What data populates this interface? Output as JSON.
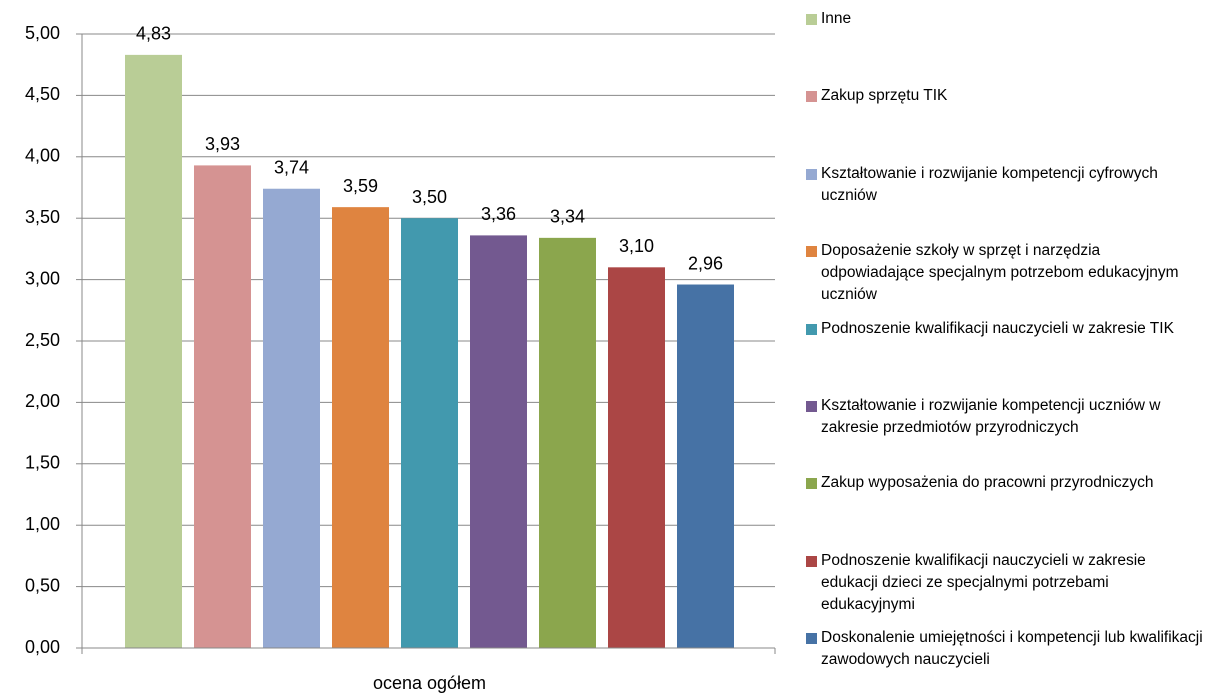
{
  "chart_data": {
    "type": "bar",
    "categories": [
      "ocena ogółem"
    ],
    "series": [
      {
        "name": "Inne",
        "color": "#b9cd96",
        "values": [
          4.83
        ],
        "value_labels": [
          "4,83"
        ]
      },
      {
        "name": "Zakup sprzętu TIK",
        "color": "#d59392",
        "values": [
          3.93
        ],
        "value_labels": [
          "3,93"
        ]
      },
      {
        "name": "Kształtowanie i rozwijanie kompetencji cyfrowych uczniów",
        "color": "#95a9d2",
        "values": [
          3.74
        ],
        "value_labels": [
          "3,74"
        ]
      },
      {
        "name": "Doposażenie szkoły w sprzęt i narzędzia odpowiadające specjalnym potrzebom edukacyjnym uczniów",
        "color": "#df8440",
        "values": [
          3.59
        ],
        "value_labels": [
          "3,59"
        ]
      },
      {
        "name": "Podnoszenie kwalifikacji nauczycieli w zakresie TIK",
        "color": "#4299ae",
        "values": [
          3.5
        ],
        "value_labels": [
          "3,50"
        ]
      },
      {
        "name": "Kształtowanie i rozwijanie kompetencji uczniów w zakresie przedmiotów przyrodniczych",
        "color": "#735990",
        "values": [
          3.36
        ],
        "value_labels": [
          "3,36"
        ]
      },
      {
        "name": "Zakup wyposażenia do pracowni przyrodniczych",
        "color": "#8ba64d",
        "values": [
          3.34
        ],
        "value_labels": [
          "3,34"
        ]
      },
      {
        "name": "Podnoszenie kwalifikacji nauczycieli w zakresie edukacji dzieci ze specjalnymi potrzebami edukacyjnymi",
        "color": "#ab4645",
        "values": [
          3.1
        ],
        "value_labels": [
          "3,10"
        ]
      },
      {
        "name": "Doskonalenie umiejętności i kompetencji lub kwalifikacji zawodowych nauczycieli",
        "color": "#4672a5",
        "values": [
          2.96
        ],
        "value_labels": [
          "2,96"
        ]
      }
    ],
    "ylim": [
      0,
      5
    ],
    "yticks": [
      {
        "value": 0,
        "label": "0,00"
      },
      {
        "value": 0.5,
        "label": "0,50"
      },
      {
        "value": 1,
        "label": "1,00"
      },
      {
        "value": 1.5,
        "label": "1,50"
      },
      {
        "value": 2,
        "label": "2,00"
      },
      {
        "value": 2.5,
        "label": "2,50"
      },
      {
        "value": 3,
        "label": "3,00"
      },
      {
        "value": 3.5,
        "label": "3,50"
      },
      {
        "value": 4,
        "label": "4,00"
      },
      {
        "value": 4.5,
        "label": "4,50"
      },
      {
        "value": 5,
        "label": "5,00"
      }
    ],
    "grid": true,
    "legend": "right"
  }
}
